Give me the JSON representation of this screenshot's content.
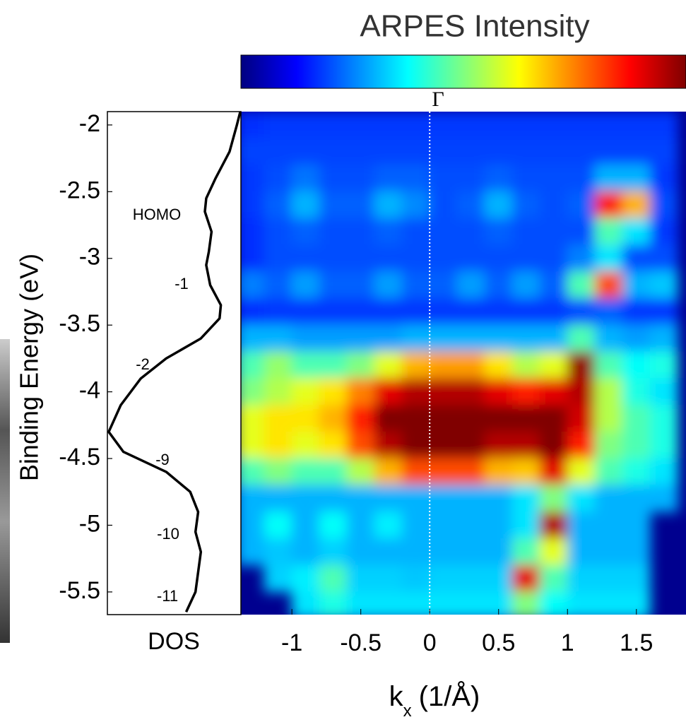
{
  "chart_data": {
    "type": "heatmap",
    "title": "ARPES Intensity",
    "xlabel": {
      "base": "k",
      "subscript": "x",
      "unit": "(1/Å)"
    },
    "ylabel": "Binding Energy (eV)",
    "colormap": "jet",
    "zlim": [
      0,
      1
    ],
    "xlim": [
      -1.37,
      1.86
    ],
    "ylim": [
      -5.67,
      -1.9
    ],
    "xticks": [
      -1,
      -0.5,
      0,
      0.5,
      1,
      1.5
    ],
    "yticks": [
      -2,
      -2.5,
      -3,
      -3.5,
      -4,
      -4.5,
      -5,
      -5.5
    ],
    "marker_line": {
      "label": "Γ",
      "kx": 0
    },
    "kx": [
      -1.3,
      -1.1,
      -0.9,
      -0.7,
      -0.5,
      -0.3,
      -0.1,
      0.1,
      0.3,
      0.5,
      0.7,
      0.9,
      1.1,
      1.3,
      1.5,
      1.7
    ],
    "energy": [
      -2.0,
      -2.2,
      -2.4,
      -2.6,
      -2.8,
      -3.0,
      -3.2,
      -3.4,
      -3.6,
      -3.8,
      -4.0,
      -4.2,
      -4.4,
      -4.6,
      -4.8,
      -5.0,
      -5.2,
      -5.4,
      -5.6
    ],
    "intensity": [
      [
        0.17,
        0.18,
        0.18,
        0.18,
        0.18,
        0.18,
        0.18,
        0.18,
        0.18,
        0.18,
        0.18,
        0.18,
        0.18,
        0.18,
        0.18,
        0.18
      ],
      [
        0.19,
        0.19,
        0.19,
        0.19,
        0.19,
        0.19,
        0.19,
        0.19,
        0.19,
        0.19,
        0.19,
        0.19,
        0.19,
        0.19,
        0.19,
        0.19
      ],
      [
        0.18,
        0.2,
        0.24,
        0.2,
        0.2,
        0.22,
        0.22,
        0.2,
        0.2,
        0.22,
        0.2,
        0.2,
        0.2,
        0.3,
        0.3,
        0.18
      ],
      [
        0.18,
        0.22,
        0.3,
        0.22,
        0.22,
        0.3,
        0.26,
        0.2,
        0.22,
        0.3,
        0.22,
        0.2,
        0.22,
        0.85,
        0.7,
        0.2
      ],
      [
        0.17,
        0.2,
        0.22,
        0.2,
        0.2,
        0.22,
        0.2,
        0.2,
        0.2,
        0.22,
        0.2,
        0.2,
        0.2,
        0.45,
        0.35,
        0.18
      ],
      [
        0.17,
        0.2,
        0.2,
        0.2,
        0.2,
        0.2,
        0.2,
        0.2,
        0.2,
        0.2,
        0.2,
        0.2,
        0.25,
        0.35,
        0.2,
        0.2
      ],
      [
        0.25,
        0.22,
        0.28,
        0.22,
        0.22,
        0.28,
        0.22,
        0.22,
        0.28,
        0.22,
        0.28,
        0.22,
        0.45,
        0.8,
        0.3,
        0.32
      ],
      [
        0.17,
        0.18,
        0.18,
        0.18,
        0.18,
        0.18,
        0.18,
        0.18,
        0.18,
        0.18,
        0.18,
        0.18,
        0.2,
        0.22,
        0.18,
        0.18
      ],
      [
        0.3,
        0.3,
        0.28,
        0.28,
        0.28,
        0.28,
        0.3,
        0.3,
        0.3,
        0.3,
        0.3,
        0.3,
        0.45,
        0.3,
        0.28,
        0.3
      ],
      [
        0.45,
        0.52,
        0.45,
        0.45,
        0.5,
        0.6,
        0.7,
        0.72,
        0.72,
        0.65,
        0.55,
        0.6,
        0.98,
        0.45,
        0.38,
        0.4
      ],
      [
        0.5,
        0.55,
        0.6,
        0.65,
        0.75,
        0.9,
        0.95,
        0.95,
        0.95,
        0.9,
        0.85,
        0.9,
        0.95,
        0.55,
        0.4,
        0.35
      ],
      [
        0.6,
        0.65,
        0.65,
        0.7,
        0.85,
        1,
        1,
        1,
        1,
        1,
        1,
        1,
        0.92,
        0.55,
        0.45,
        0.4
      ],
      [
        0.6,
        0.65,
        0.6,
        0.65,
        0.8,
        0.95,
        1,
        1,
        1,
        0.95,
        0.95,
        1,
        0.85,
        0.5,
        0.45,
        0.4
      ],
      [
        0.45,
        0.5,
        0.45,
        0.45,
        0.55,
        0.7,
        0.8,
        0.8,
        0.8,
        0.7,
        0.68,
        0.9,
        0.6,
        0.45,
        0.4,
        0.35
      ],
      [
        0.3,
        0.3,
        0.3,
        0.3,
        0.3,
        0.3,
        0.3,
        0.3,
        0.3,
        0.3,
        0.35,
        0.5,
        0.35,
        0.3,
        0.3,
        0.3
      ],
      [
        0.3,
        0.38,
        0.3,
        0.38,
        0.3,
        0.36,
        0.3,
        0.3,
        0.3,
        0.3,
        0.35,
        0.95,
        0.3,
        0.3,
        0.3,
        null
      ],
      [
        0.3,
        0.32,
        0.3,
        0.33,
        0.3,
        0.3,
        0.3,
        0.3,
        0.3,
        0.3,
        0.45,
        0.6,
        0.3,
        0.3,
        0.3,
        null
      ],
      [
        null,
        0.33,
        0.36,
        0.45,
        0.33,
        0.33,
        0.32,
        0.33,
        0.33,
        0.33,
        0.9,
        0.45,
        0.33,
        0.33,
        0.33,
        null
      ],
      [
        null,
        null,
        0.35,
        0.4,
        0.35,
        0.35,
        0.35,
        0.35,
        0.35,
        0.35,
        0.5,
        0.38,
        0.35,
        0.35,
        0.35,
        null
      ]
    ],
    "dos": {
      "label": "DOS",
      "xlim": [
        1,
        0
      ],
      "energy": [
        -1.9,
        -2.0,
        -2.2,
        -2.4,
        -2.55,
        -2.65,
        -2.8,
        -2.95,
        -3.05,
        -3.2,
        -3.35,
        -3.45,
        -3.6,
        -3.75,
        -3.9,
        -4.1,
        -4.3,
        -4.45,
        -4.6,
        -4.75,
        -4.9,
        -5.05,
        -5.2,
        -5.35,
        -5.5,
        -5.65
      ],
      "values": [
        0.005,
        0.03,
        0.085,
        0.19,
        0.26,
        0.27,
        0.22,
        0.24,
        0.26,
        0.23,
        0.15,
        0.16,
        0.3,
        0.56,
        0.75,
        0.9,
        0.99,
        0.88,
        0.56,
        0.38,
        0.32,
        0.34,
        0.3,
        0.32,
        0.34,
        0.41
      ],
      "peak_labels": [
        "HOMO",
        "-1",
        "-2",
        "-9",
        "-10",
        "-11"
      ]
    }
  }
}
